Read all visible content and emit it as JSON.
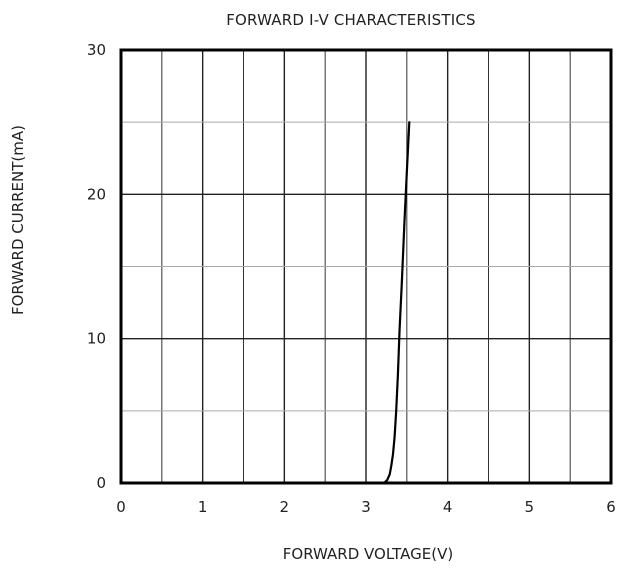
{
  "chart_data": {
    "type": "line",
    "title": "FORWARD I-V CHARACTERISTICS",
    "xlabel": "FORWARD VOLTAGE(V)",
    "ylabel": "FORWARD CURRENT(mA)",
    "xlim": [
      0,
      6
    ],
    "ylim": [
      0,
      30
    ],
    "x_ticks": [
      0,
      1,
      2,
      3,
      4,
      5,
      6
    ],
    "y_ticks": [
      0,
      10,
      20,
      30
    ],
    "x_tick_labels": [
      "0",
      "1",
      "2",
      "3",
      "4",
      "5",
      "6"
    ],
    "y_tick_labels": [
      "0",
      "10",
      "20",
      "30"
    ],
    "x_minor_step": 0.5,
    "y_minor_step": 5,
    "grid": true,
    "series": [
      {
        "x": [
          3.22,
          3.26,
          3.29,
          3.31,
          3.33,
          3.35,
          3.37,
          3.39,
          3.41,
          3.44,
          3.47,
          3.5,
          3.53
        ],
        "y": [
          0,
          0.2,
          0.6,
          1.2,
          2.0,
          3.2,
          5.0,
          7.5,
          10.5,
          14.0,
          18.0,
          21.5,
          25.0
        ],
        "color": "#000000"
      }
    ]
  }
}
